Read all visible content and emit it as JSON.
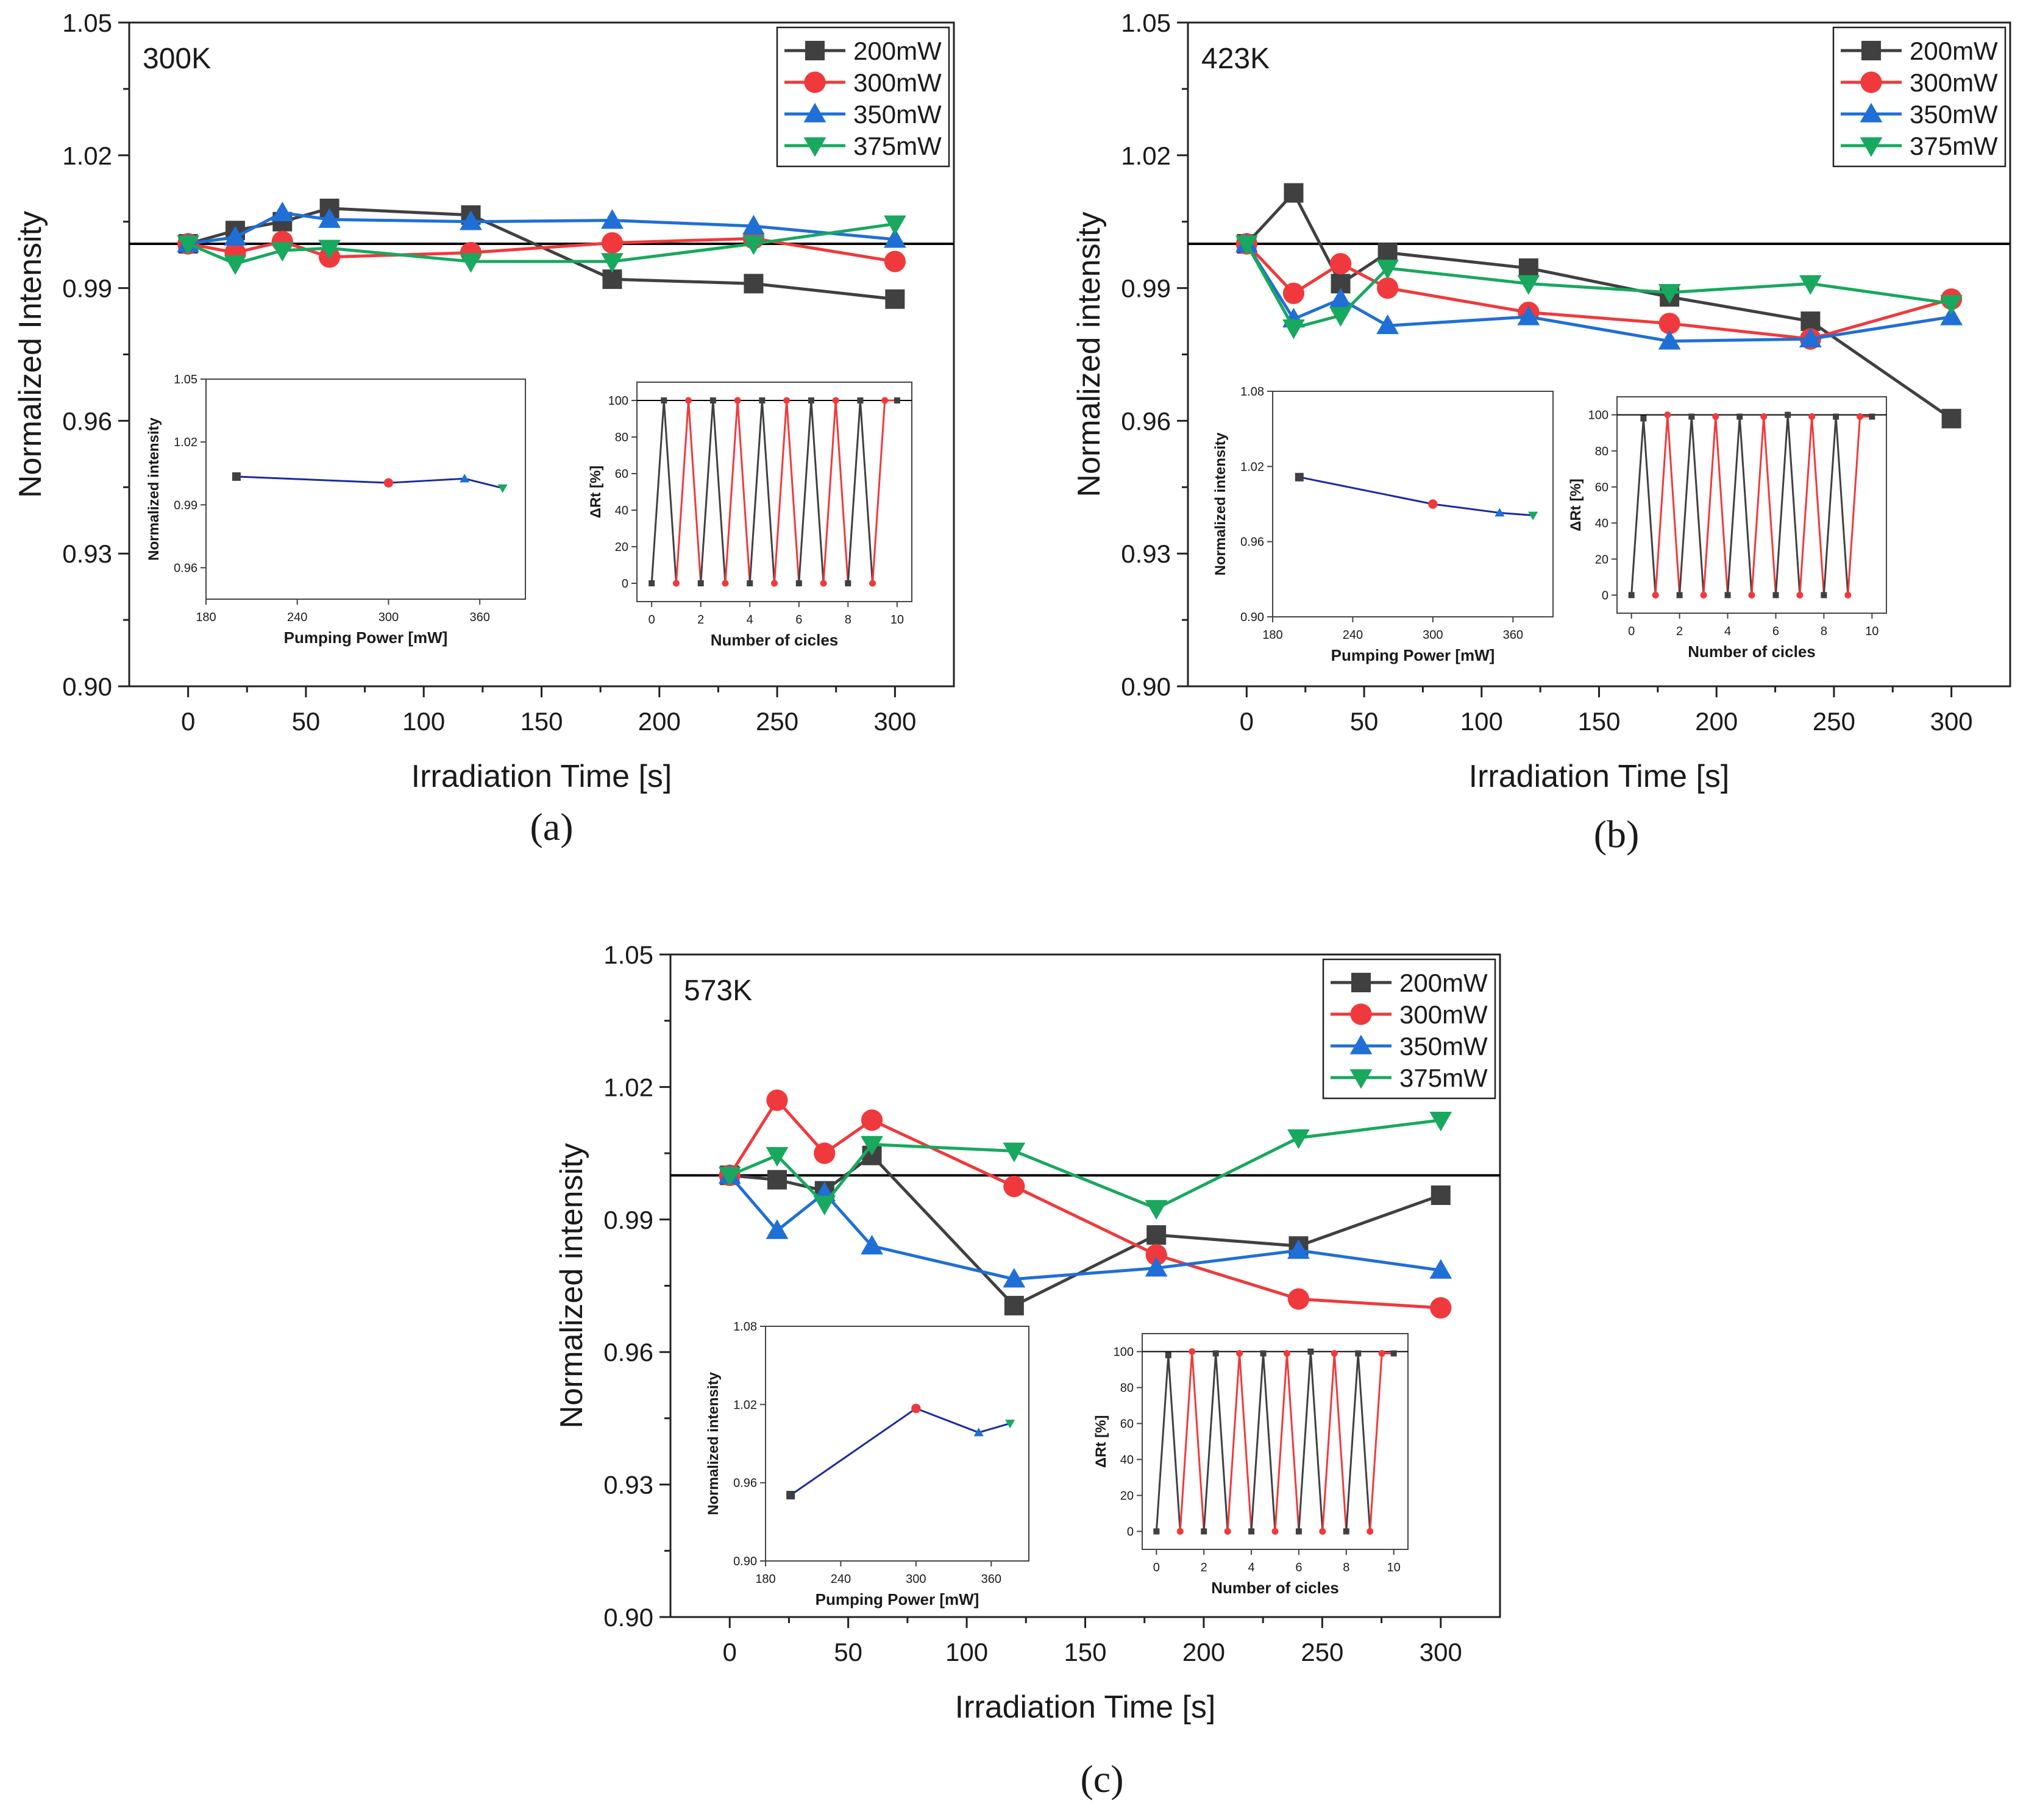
{
  "colors": {
    "s200": "#404040",
    "s300": "#f0393c",
    "s350": "#1f6fd6",
    "s375": "#18a85e",
    "ref": "#000000",
    "inset_line": "#1a2aa0"
  },
  "figure": {
    "captions": [
      "(a)",
      "(b)",
      "(c)"
    ]
  },
  "chart_data": [
    {
      "type": "line",
      "panel_caption": "(a)",
      "annotation": "300K",
      "xlabel": "Irradiation Time [s]",
      "ylabel": "Normalized Intensity",
      "xlim": [
        -25,
        325
      ],
      "ylim": [
        0.9,
        1.05
      ],
      "xticks": [
        0,
        50,
        100,
        150,
        200,
        250,
        300
      ],
      "yticks": [
        "0.90",
        "0.93",
        "0.96",
        "0.99",
        "1.02",
        "1.05"
      ],
      "reference_line": 1.0,
      "legend": [
        "200mW",
        "300mW",
        "350mW",
        "375mW"
      ],
      "x": [
        0,
        20,
        40,
        60,
        120,
        180,
        240,
        300
      ],
      "series": [
        {
          "name": "200mW",
          "marker": "square",
          "values": [
            1.0,
            1.003,
            1.005,
            1.008,
            1.0065,
            0.992,
            0.991,
            0.9875
          ]
        },
        {
          "name": "300mW",
          "marker": "circle",
          "values": [
            1.0,
            0.998,
            1.0005,
            0.997,
            0.998,
            1.0002,
            1.0012,
            0.996
          ]
        },
        {
          "name": "350mW",
          "marker": "triangle-up",
          "values": [
            1.0,
            1.0015,
            1.007,
            1.0055,
            1.005,
            1.0053,
            1.004,
            1.001
          ]
        },
        {
          "name": "375mW",
          "marker": "triangle-down",
          "values": [
            1.0,
            0.9955,
            0.9985,
            0.999,
            0.996,
            0.996,
            1.0,
            1.0045
          ]
        }
      ],
      "insets": [
        {
          "type": "line",
          "xlabel": "Pumping Power [mW]",
          "ylabel": "Normalized intensity",
          "xlim": [
            180,
            390
          ],
          "ylim": [
            0.945,
            1.05
          ],
          "xticks": [
            "180",
            "240",
            "300",
            "360"
          ],
          "yticks": [
            "0.96",
            "0.99",
            "1.02",
            "1.05"
          ],
          "x": [
            200,
            300,
            350,
            375
          ],
          "values": [
            1.0035,
            1.0005,
            1.0025,
            0.998
          ]
        },
        {
          "type": "line",
          "xlabel": "Number of cicles",
          "ylabel": "ΔRt [%]",
          "xlim": [
            -0.6,
            10.6
          ],
          "ylim": [
            -10,
            110
          ],
          "xticks": [
            "0",
            "2",
            "4",
            "6",
            "8",
            "10"
          ],
          "yticks": [
            "0",
            "20",
            "40",
            "60",
            "80",
            "100"
          ],
          "reference_line": 100,
          "cycle_x": [
            0,
            0.5,
            1,
            1.5,
            2,
            2.5,
            3,
            3.5,
            4,
            4.5,
            5,
            5.5,
            6,
            6.5,
            7,
            7.5,
            8,
            8.5,
            9,
            9.5,
            10
          ],
          "cycle_values": [
            0,
            100,
            0,
            100,
            0,
            100,
            0,
            100,
            0,
            100,
            0,
            100,
            0,
            100,
            0,
            100,
            0,
            100,
            0,
            100,
            100
          ]
        }
      ]
    },
    {
      "type": "line",
      "panel_caption": "(b)",
      "annotation": "423K",
      "xlabel": "Irradiation Time [s]",
      "ylabel": "Normalized intensity",
      "xlim": [
        -25,
        325
      ],
      "ylim": [
        0.9,
        1.05
      ],
      "xticks": [
        0,
        50,
        100,
        150,
        200,
        250,
        300
      ],
      "yticks": [
        "0.90",
        "0.93",
        "0.96",
        "0.99",
        "1.02",
        "1.05"
      ],
      "reference_line": 1.0,
      "legend": [
        "200mW",
        "300mW",
        "350mW",
        "375mW"
      ],
      "x": [
        0,
        20,
        40,
        60,
        120,
        180,
        240,
        300
      ],
      "series": [
        {
          "name": "200mW",
          "marker": "square",
          "values": [
            1.0,
            1.0115,
            0.991,
            0.998,
            0.9945,
            0.988,
            0.9825,
            0.9605
          ]
        },
        {
          "name": "300mW",
          "marker": "circle",
          "values": [
            1.0,
            0.9888,
            0.9955,
            0.99,
            0.9845,
            0.982,
            0.9785,
            0.9875
          ]
        },
        {
          "name": "350mW",
          "marker": "triangle-up",
          "values": [
            1.0,
            0.983,
            0.9875,
            0.9815,
            0.9835,
            0.978,
            0.9785,
            0.9835
          ]
        },
        {
          "name": "375mW",
          "marker": "triangle-down",
          "values": [
            1.0,
            0.981,
            0.9838,
            0.9945,
            0.991,
            0.989,
            0.991,
            0.9865
          ]
        }
      ],
      "insets": [
        {
          "type": "line",
          "xlabel": "Pumping Power [mW]",
          "ylabel": "Normalized intensity",
          "xlim": [
            180,
            390
          ],
          "ylim": [
            0.9,
            1.08
          ],
          "xticks": [
            "180",
            "240",
            "300",
            "360"
          ],
          "yticks": [
            "0.90",
            "0.96",
            "1.02",
            "1.08"
          ],
          "x": [
            200,
            300,
            350,
            375
          ],
          "values": [
            1.0115,
            0.99,
            0.983,
            0.981
          ]
        },
        {
          "type": "line",
          "xlabel": "Number of cicles",
          "ylabel": "ΔRt [%]",
          "xlim": [
            -0.6,
            10.6
          ],
          "ylim": [
            -10,
            110
          ],
          "xticks": [
            "0",
            "2",
            "4",
            "6",
            "8",
            "10"
          ],
          "yticks": [
            "0",
            "20",
            "40",
            "60",
            "80",
            "100"
          ],
          "reference_line": 100,
          "cycle_x": [
            0,
            0.5,
            1,
            1.5,
            2,
            2.5,
            3,
            3.5,
            4,
            4.5,
            5,
            5.5,
            6,
            6.5,
            7,
            7.5,
            8,
            8.5,
            9,
            9.5,
            10
          ],
          "cycle_values": [
            0,
            98,
            0,
            100,
            0,
            99,
            0,
            99,
            0,
            99,
            0,
            99,
            0,
            100,
            0,
            99,
            0,
            99,
            0,
            99,
            99
          ]
        }
      ]
    },
    {
      "type": "line",
      "panel_caption": "(c)",
      "annotation": "573K",
      "xlabel": "Irradiation Time [s]",
      "ylabel": "Normalized intensity",
      "xlim": [
        -25,
        325
      ],
      "ylim": [
        0.9,
        1.05
      ],
      "xticks": [
        0,
        50,
        100,
        150,
        200,
        250,
        300
      ],
      "yticks": [
        "0.90",
        "0.93",
        "0.96",
        "0.99",
        "1.02",
        "1.05"
      ],
      "reference_line": 1.0,
      "legend": [
        "200mW",
        "300mW",
        "350mW",
        "375mW"
      ],
      "x": [
        0,
        20,
        40,
        60,
        120,
        180,
        240,
        300
      ],
      "series": [
        {
          "name": "200mW",
          "marker": "square",
          "values": [
            1.0,
            0.999,
            0.9965,
            1.0045,
            0.9705,
            0.9865,
            0.984,
            0.9955
          ]
        },
        {
          "name": "300mW",
          "marker": "circle",
          "values": [
            1.0,
            1.017,
            1.005,
            1.0125,
            0.9975,
            0.982,
            0.972,
            0.97
          ]
        },
        {
          "name": "350mW",
          "marker": "triangle-up",
          "values": [
            1.0,
            0.9875,
            0.996,
            0.984,
            0.9765,
            0.979,
            0.983,
            0.9785
          ]
        },
        {
          "name": "375mW",
          "marker": "triangle-down",
          "values": [
            1.0,
            1.0045,
            0.9935,
            1.007,
            1.0055,
            0.9925,
            1.0085,
            1.0125
          ]
        }
      ],
      "insets": [
        {
          "type": "line",
          "xlabel": "Pumping Power [mW]",
          "ylabel": "Normalized intensity",
          "xlim": [
            180,
            390
          ],
          "ylim": [
            0.9,
            1.08
          ],
          "xticks": [
            "180",
            "240",
            "300",
            "360"
          ],
          "yticks": [
            "0.90",
            "0.96",
            "1.02",
            "1.08"
          ],
          "x": [
            200,
            300,
            350,
            375
          ],
          "values": [
            0.9505,
            1.017,
            0.9985,
            1.0055
          ]
        },
        {
          "type": "line",
          "xlabel": "Number of cicles",
          "ylabel": "ΔRt [%]",
          "xlim": [
            -0.6,
            10.6
          ],
          "ylim": [
            -10,
            110
          ],
          "xticks": [
            "0",
            "2",
            "4",
            "6",
            "8",
            "10"
          ],
          "yticks": [
            "0",
            "20",
            "40",
            "60",
            "80",
            "100"
          ],
          "reference_line": 100,
          "cycle_x": [
            0,
            0.5,
            1,
            1.5,
            2,
            2.5,
            3,
            3.5,
            4,
            4.5,
            5,
            5.5,
            6,
            6.5,
            7,
            7.5,
            8,
            8.5,
            9,
            9.5,
            10
          ],
          "cycle_values": [
            0,
            98,
            0,
            100,
            0,
            99,
            0,
            99,
            0,
            99,
            0,
            99,
            0,
            100,
            0,
            99,
            0,
            99,
            0,
            99,
            99
          ]
        }
      ]
    }
  ]
}
